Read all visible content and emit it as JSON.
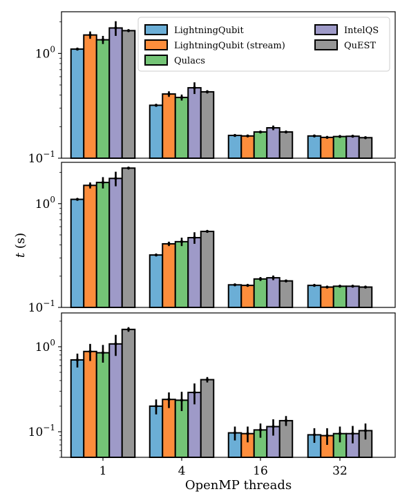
{
  "chart_data": {
    "type": "bar",
    "categories": [
      "1",
      "4",
      "16",
      "32"
    ],
    "xlabel": "OpenMP threads",
    "ylabel": "t (s)",
    "yscale": "log",
    "ytick_labels": [
      "10^0",
      "10^-1"
    ],
    "legend": {
      "placement": "top-right, two columns, in top panel",
      "entries": [
        "LightningQubit",
        "LightningQubit (stream)",
        "Qulacs",
        "IntelQS",
        "QuEST"
      ]
    },
    "colors": {
      "LightningQubit": "#6baed6",
      "LightningQubit (stream)": "#fd8d3c",
      "Qulacs": "#74c476",
      "IntelQS": "#9e9ac8",
      "QuEST": "#969696"
    },
    "panels": [
      {
        "ylim": [
          0.1,
          2.5
        ],
        "series": [
          {
            "name": "LightningQubit",
            "values": [
              1.1,
              0.32,
              0.165,
              0.163
            ],
            "errors": [
              0.03,
              0.01,
              0.003,
              0.003
            ]
          },
          {
            "name": "LightningQubit (stream)",
            "values": [
              1.5,
              0.41,
              0.163,
              0.158
            ],
            "errors": [
              0.12,
              0.025,
              0.003,
              0.003
            ]
          },
          {
            "name": "Qulacs",
            "values": [
              1.35,
              0.38,
              0.178,
              0.161
            ],
            "errors": [
              0.12,
              0.025,
              0.004,
              0.003
            ]
          },
          {
            "name": "IntelQS",
            "values": [
              1.75,
              0.47,
              0.195,
              0.162
            ],
            "errors": [
              0.28,
              0.06,
              0.01,
              0.004
            ]
          },
          {
            "name": "QuEST",
            "values": [
              1.65,
              0.43,
              0.178,
              0.157
            ],
            "errors": [
              0.05,
              0.015,
              0.004,
              0.003
            ]
          }
        ]
      },
      {
        "ylim": [
          0.1,
          2.5
        ],
        "series": [
          {
            "name": "LightningQubit",
            "values": [
              1.1,
              0.32,
              0.165,
              0.163
            ],
            "errors": [
              0.02,
              0.005,
              0.003,
              0.003
            ]
          },
          {
            "name": "LightningQubit (stream)",
            "values": [
              1.5,
              0.41,
              0.163,
              0.157
            ],
            "errors": [
              0.1,
              0.02,
              0.003,
              0.003
            ]
          },
          {
            "name": "Qulacs",
            "values": [
              1.6,
              0.43,
              0.188,
              0.16
            ],
            "errors": [
              0.2,
              0.04,
              0.008,
              0.003
            ]
          },
          {
            "name": "IntelQS",
            "values": [
              1.75,
              0.47,
              0.193,
              0.16
            ],
            "errors": [
              0.28,
              0.06,
              0.01,
              0.003
            ]
          },
          {
            "name": "QuEST",
            "values": [
              2.2,
              0.54,
              0.18,
              0.157
            ],
            "errors": [
              0.04,
              0.01,
              0.004,
              0.003
            ]
          }
        ]
      },
      {
        "ylim": [
          0.05,
          2.5
        ],
        "series": [
          {
            "name": "LightningQubit",
            "values": [
              0.7,
              0.2,
              0.097,
              0.092
            ],
            "errors": [
              0.13,
              0.04,
              0.018,
              0.018
            ]
          },
          {
            "name": "LightningQubit (stream)",
            "values": [
              0.88,
              0.24,
              0.095,
              0.09
            ],
            "errors": [
              0.2,
              0.05,
              0.02,
              0.02
            ]
          },
          {
            "name": "Qulacs",
            "values": [
              0.85,
              0.235,
              0.105,
              0.095
            ],
            "errors": [
              0.2,
              0.06,
              0.02,
              0.02
            ]
          },
          {
            "name": "IntelQS",
            "values": [
              1.08,
              0.29,
              0.115,
              0.095
            ],
            "errors": [
              0.3,
              0.08,
              0.025,
              0.022
            ]
          },
          {
            "name": "QuEST",
            "values": [
              1.6,
              0.41,
              0.135,
              0.103
            ],
            "errors": [
              0.1,
              0.03,
              0.018,
              0.022
            ]
          }
        ]
      }
    ]
  }
}
